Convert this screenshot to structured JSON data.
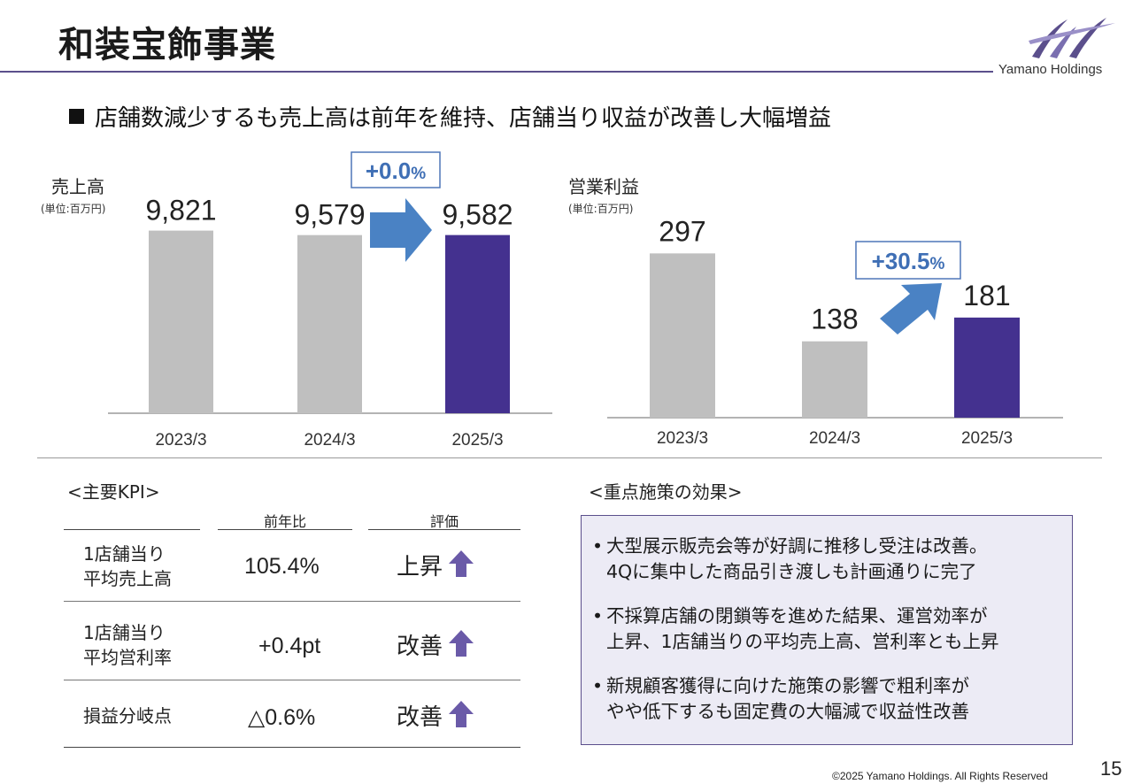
{
  "header": {
    "title": "和装宝飾事業",
    "logo_text": "Yamano Holdings"
  },
  "headline": "店舗数減少するも売上高は前年を維持、店舗当り収益が改善し大幅増益",
  "chart_data": [
    {
      "type": "bar",
      "title": "売上高",
      "unit": "(単位:百万円)",
      "categories": [
        "2023/3",
        "2024/3",
        "2025/3"
      ],
      "values": [
        9821,
        9579,
        9582
      ],
      "value_labels": [
        "9,821",
        "9,579",
        "9,582"
      ],
      "bar_colors": [
        "#bfbfbf",
        "#bfbfbf",
        "#44318f"
      ],
      "ylim": [
        0,
        10500
      ],
      "change_label": "+0.0%",
      "change_label_main": "+0.0",
      "change_label_unit": "%"
    },
    {
      "type": "bar",
      "title": "営業利益",
      "unit": "(単位:百万円)",
      "categories": [
        "2023/3",
        "2024/3",
        "2025/3"
      ],
      "values": [
        297,
        138,
        181
      ],
      "value_labels": [
        "297",
        "138",
        "181"
      ],
      "bar_colors": [
        "#bfbfbf",
        "#bfbfbf",
        "#44318f"
      ],
      "ylim": [
        0,
        350
      ],
      "change_label": "+30.5%",
      "change_label_main": "+30.5",
      "change_label_unit": "%"
    }
  ],
  "kpi": {
    "title": "<主要KPI>",
    "col_headers": [
      "前年比",
      "評価"
    ],
    "rows": [
      {
        "label_line1": "1店舗当り",
        "label_line2": "平均売上高",
        "value": "105.4%",
        "evaluation": "上昇"
      },
      {
        "label_line1": "1店舗当り",
        "label_line2": "平均営利率",
        "value": "+0.4pt",
        "evaluation": "改善"
      },
      {
        "label_line1": "損益分岐点",
        "label_line2": "",
        "value": "△0.6%",
        "evaluation": "改善"
      }
    ]
  },
  "measures": {
    "title": "<重点施策の効果>",
    "bullets": [
      {
        "line1": "大型展示販売会等が好調に推移し受注は改善。",
        "line2": "4Qに集中した商品引き渡しも計画通りに完了"
      },
      {
        "line1": "不採算店舗の閉鎖等を進めた結果、運営効率が",
        "line2": "上昇、1店舗当りの平均売上高、営利率とも上昇"
      },
      {
        "line1": "新規顧客獲得に向けた施策の影響で粗利率が",
        "line2": "やや低下するも固定費の大幅減で収益性改善"
      }
    ]
  },
  "footer": {
    "copyright": "©2025 Yamano Holdings. All Rights Reserved",
    "page_number": "15"
  },
  "colors": {
    "accent": "#44318f",
    "bar_gray": "#bfbfbf",
    "arrow_blue": "#4a82c4",
    "box_border": "#4f77b8",
    "box_text": "#3f6fb5",
    "kpi_arrow": "#6a5aa8"
  }
}
